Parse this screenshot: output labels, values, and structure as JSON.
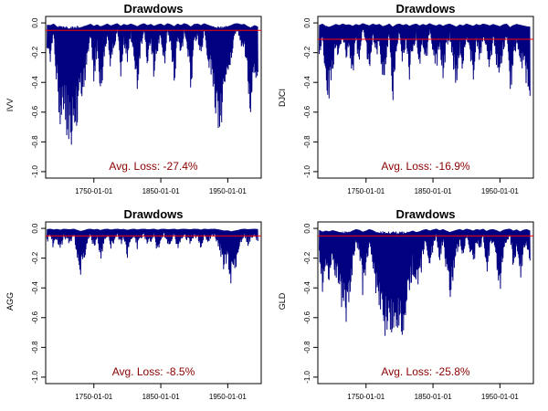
{
  "chart_data": [
    {
      "type": "area",
      "title": "Drawdows",
      "xlabel": "",
      "ylabel": "IVV",
      "ylim": [
        -1.0,
        0.0
      ],
      "xlim": [
        "1678-01-01",
        "2000-01-01"
      ],
      "x_ticks": [
        "1750-01-01",
        "1850-01-01",
        "1950-01-01"
      ],
      "y_ticks": [
        "0.0",
        "-0.2",
        "-0.4",
        "-0.6",
        "-0.8",
        "-1.0"
      ],
      "reference_line": -0.05,
      "annotation": "Avg. Loss: -27.4%",
      "grid": false,
      "legend": "none",
      "series_color": "#000080",
      "reference_color": "#ff0000",
      "annotation_color": "#8b0000",
      "series": [
        {
          "x": [
            "1680-01-01",
            "1685-01-01",
            "1690-01-01",
            "1695-01-01",
            "1700-01-01",
            "1705-01-01",
            "1710-01-01",
            "1715-01-01",
            "1720-01-01",
            "1725-01-01",
            "1730-01-01",
            "1735-01-01",
            "1740-01-01",
            "1745-01-01",
            "1750-01-01",
            "1755-01-01",
            "1760-01-01",
            "1765-01-01",
            "1770-01-01",
            "1775-01-01",
            "1780-01-01",
            "1785-01-01",
            "1790-01-01",
            "1795-01-01",
            "1800-01-01",
            "1805-01-01",
            "1810-01-01",
            "1815-01-01",
            "1820-01-01",
            "1825-01-01",
            "1830-01-01",
            "1835-01-01",
            "1840-01-01",
            "1845-01-01",
            "1850-01-01",
            "1855-01-01",
            "1860-01-01",
            "1865-01-01",
            "1870-01-01",
            "1875-01-01",
            "1880-01-01",
            "1885-01-01",
            "1890-01-01",
            "1895-01-01",
            "1900-01-01",
            "1905-01-01",
            "1910-01-01",
            "1915-01-01",
            "1920-01-01",
            "1925-01-01",
            "1930-01-01",
            "1935-01-01",
            "1940-01-01",
            "1945-01-01",
            "1950-01-01",
            "1955-01-01",
            "1960-01-01",
            "1965-01-01",
            "1970-01-01",
            "1975-01-01",
            "1980-01-01",
            "1985-01-01",
            "1990-01-01",
            "1995-01-01"
          ],
          "y": [
            -0.25,
            -0.3,
            -0.1,
            -0.5,
            -0.72,
            -0.62,
            -0.78,
            -0.86,
            -0.8,
            -0.7,
            -0.6,
            -0.45,
            -0.3,
            -0.12,
            -0.4,
            -0.2,
            -0.5,
            -0.3,
            -0.1,
            -0.35,
            -0.2,
            -0.05,
            -0.4,
            -0.15,
            -0.3,
            -0.1,
            -0.25,
            -0.45,
            -0.2,
            -0.05,
            -0.3,
            -0.15,
            -0.4,
            -0.2,
            -0.1,
            -0.35,
            -0.05,
            -0.2,
            -0.45,
            -0.1,
            -0.3,
            -0.05,
            -0.2,
            -0.5,
            -0.15,
            -0.1,
            -0.3,
            -0.05,
            -0.25,
            -0.4,
            -0.55,
            -0.7,
            -0.74,
            -0.6,
            -0.45,
            -0.3,
            -0.1,
            -0.05,
            -0.2,
            -0.15,
            -0.45,
            -0.65,
            -0.3,
            -0.5
          ]
        }
      ]
    },
    {
      "type": "area",
      "title": "Drawdows",
      "xlabel": "",
      "ylabel": "DJCI",
      "ylim": [
        -1.0,
        0.0
      ],
      "xlim": [
        "1678-01-01",
        "2000-01-01"
      ],
      "x_ticks": [
        "1750-01-01",
        "1850-01-01",
        "1950-01-01"
      ],
      "y_ticks": [
        "0.0",
        "-0.2",
        "-0.4",
        "-0.6",
        "-0.8",
        "-1.0"
      ],
      "reference_line": -0.11,
      "annotation": "Avg. Loss: -16.9%",
      "grid": false,
      "legend": "none",
      "series_color": "#000080",
      "reference_color": "#ff0000",
      "annotation_color": "#8b0000",
      "series": [
        {
          "x": [
            "1680-01-01",
            "1685-01-01",
            "1690-01-01",
            "1695-01-01",
            "1700-01-01",
            "1705-01-01",
            "1710-01-01",
            "1715-01-01",
            "1720-01-01",
            "1725-01-01",
            "1730-01-01",
            "1735-01-01",
            "1740-01-01",
            "1745-01-01",
            "1750-01-01",
            "1755-01-01",
            "1760-01-01",
            "1765-01-01",
            "1770-01-01",
            "1775-01-01",
            "1780-01-01",
            "1785-01-01",
            "1790-01-01",
            "1795-01-01",
            "1800-01-01",
            "1805-01-01",
            "1810-01-01",
            "1815-01-01",
            "1820-01-01",
            "1825-01-01",
            "1830-01-01",
            "1835-01-01",
            "1840-01-01",
            "1845-01-01",
            "1850-01-01",
            "1855-01-01",
            "1860-01-01",
            "1865-01-01",
            "1870-01-01",
            "1875-01-01",
            "1880-01-01",
            "1885-01-01",
            "1890-01-01",
            "1895-01-01",
            "1900-01-01",
            "1905-01-01",
            "1910-01-01",
            "1915-01-01",
            "1920-01-01",
            "1925-01-01",
            "1930-01-01",
            "1935-01-01",
            "1940-01-01",
            "1945-01-01",
            "1950-01-01",
            "1955-01-01",
            "1960-01-01",
            "1965-01-01",
            "1970-01-01",
            "1975-01-01",
            "1980-01-01",
            "1985-01-01",
            "1990-01-01",
            "1995-01-01"
          ],
          "y": [
            -0.3,
            -0.1,
            -0.45,
            -0.52,
            -0.35,
            -0.15,
            -0.3,
            -0.1,
            -0.25,
            -0.2,
            -0.4,
            -0.15,
            -0.3,
            -0.05,
            -0.2,
            -0.35,
            -0.1,
            -0.25,
            -0.15,
            -0.45,
            -0.3,
            -0.1,
            -0.55,
            -0.2,
            -0.1,
            -0.3,
            -0.15,
            -0.4,
            -0.2,
            -0.1,
            -0.35,
            -0.15,
            -0.3,
            -0.05,
            -0.25,
            -0.35,
            -0.15,
            -0.4,
            -0.2,
            -0.1,
            -0.3,
            -0.5,
            -0.2,
            -0.35,
            -0.1,
            -0.25,
            -0.4,
            -0.15,
            -0.3,
            -0.1,
            -0.2,
            -0.35,
            -0.15,
            -0.3,
            -0.45,
            -0.2,
            -0.1,
            -0.57,
            -0.3,
            -0.15,
            -0.25,
            -0.35,
            -0.45,
            -0.5
          ]
        }
      ]
    },
    {
      "type": "area",
      "title": "Drawdows",
      "xlabel": "",
      "ylabel": "AGG",
      "ylim": [
        -1.0,
        0.0
      ],
      "xlim": [
        "1678-01-01",
        "2000-01-01"
      ],
      "x_ticks": [
        "1750-01-01",
        "1850-01-01",
        "1950-01-01"
      ],
      "y_ticks": [
        "0.0",
        "-0.2",
        "-0.4",
        "-0.6",
        "-0.8",
        "-1.0"
      ],
      "reference_line": -0.05,
      "annotation": "Avg. Loss: -8.5%",
      "grid": false,
      "legend": "none",
      "series_color": "#000080",
      "reference_color": "#ff0000",
      "annotation_color": "#8b0000",
      "series": [
        {
          "x": [
            "1680-01-01",
            "1685-01-01",
            "1690-01-01",
            "1695-01-01",
            "1700-01-01",
            "1705-01-01",
            "1710-01-01",
            "1715-01-01",
            "1720-01-01",
            "1725-01-01",
            "1730-01-01",
            "1735-01-01",
            "1740-01-01",
            "1745-01-01",
            "1750-01-01",
            "1755-01-01",
            "1760-01-01",
            "1765-01-01",
            "1770-01-01",
            "1775-01-01",
            "1780-01-01",
            "1785-01-01",
            "1790-01-01",
            "1795-01-01",
            "1800-01-01",
            "1805-01-01",
            "1810-01-01",
            "1815-01-01",
            "1820-01-01",
            "1825-01-01",
            "1830-01-01",
            "1835-01-01",
            "1840-01-01",
            "1845-01-01",
            "1850-01-01",
            "1855-01-01",
            "1860-01-01",
            "1865-01-01",
            "1870-01-01",
            "1875-01-01",
            "1880-01-01",
            "1885-01-01",
            "1890-01-01",
            "1895-01-01",
            "1900-01-01",
            "1905-01-01",
            "1910-01-01",
            "1915-01-01",
            "1920-01-01",
            "1925-01-01",
            "1930-01-01",
            "1935-01-01",
            "1940-01-01",
            "1945-01-01",
            "1950-01-01",
            "1955-01-01",
            "1960-01-01",
            "1965-01-01",
            "1970-01-01",
            "1975-01-01",
            "1980-01-01",
            "1985-01-01",
            "1990-01-01",
            "1995-01-01"
          ],
          "y": [
            -0.1,
            -0.05,
            -0.15,
            -0.08,
            -0.18,
            -0.05,
            -0.1,
            -0.12,
            -0.05,
            -0.2,
            -0.35,
            -0.25,
            -0.1,
            -0.05,
            -0.15,
            -0.08,
            -0.22,
            -0.1,
            -0.05,
            -0.15,
            -0.1,
            -0.05,
            -0.12,
            -0.08,
            -0.2,
            -0.1,
            -0.05,
            -0.15,
            -0.08,
            -0.05,
            -0.12,
            -0.1,
            -0.05,
            -0.18,
            -0.08,
            -0.05,
            -0.12,
            -0.1,
            -0.05,
            -0.15,
            -0.08,
            -0.05,
            -0.1,
            -0.12,
            -0.05,
            -0.08,
            -0.15,
            -0.05,
            -0.1,
            -0.08,
            -0.05,
            -0.12,
            -0.2,
            -0.3,
            -0.25,
            -0.39,
            -0.3,
            -0.22,
            -0.1,
            -0.05,
            -0.12,
            -0.08,
            -0.05,
            -0.1
          ]
        }
      ]
    },
    {
      "type": "area",
      "title": "Drawdows",
      "xlabel": "",
      "ylabel": "GLD",
      "ylim": [
        -1.0,
        0.0
      ],
      "xlim": [
        "1678-01-01",
        "2000-01-01"
      ],
      "x_ticks": [
        "1750-01-01",
        "1850-01-01",
        "1950-01-01"
      ],
      "y_ticks": [
        "0.0",
        "-0.2",
        "-0.4",
        "-0.6",
        "-0.8",
        "-1.0"
      ],
      "reference_line": -0.05,
      "annotation": "Avg. Loss: -25.8%",
      "grid": false,
      "legend": "none",
      "series_color": "#000080",
      "reference_color": "#ff0000",
      "annotation_color": "#8b0000",
      "series": [
        {
          "x": [
            "1680-01-01",
            "1685-01-01",
            "1690-01-01",
            "1695-01-01",
            "1700-01-01",
            "1705-01-01",
            "1710-01-01",
            "1715-01-01",
            "1720-01-01",
            "1725-01-01",
            "1730-01-01",
            "1735-01-01",
            "1740-01-01",
            "1745-01-01",
            "1750-01-01",
            "1755-01-01",
            "1760-01-01",
            "1765-01-01",
            "1770-01-01",
            "1775-01-01",
            "1780-01-01",
            "1785-01-01",
            "1790-01-01",
            "1795-01-01",
            "1800-01-01",
            "1805-01-01",
            "1810-01-01",
            "1815-01-01",
            "1820-01-01",
            "1825-01-01",
            "1830-01-01",
            "1835-01-01",
            "1840-01-01",
            "1845-01-01",
            "1850-01-01",
            "1855-01-01",
            "1860-01-01",
            "1865-01-01",
            "1870-01-01",
            "1875-01-01",
            "1880-01-01",
            "1885-01-01",
            "1890-01-01",
            "1895-01-01",
            "1900-01-01",
            "1905-01-01",
            "1910-01-01",
            "1915-01-01",
            "1920-01-01",
            "1925-01-01",
            "1930-01-01",
            "1935-01-01",
            "1940-01-01",
            "1945-01-01",
            "1950-01-01",
            "1955-01-01",
            "1960-01-01",
            "1965-01-01",
            "1970-01-01",
            "1975-01-01",
            "1980-01-01",
            "1985-01-01",
            "1990-01-01",
            "1995-01-01"
          ],
          "y": [
            -0.2,
            -0.45,
            -0.3,
            -0.4,
            -0.25,
            -0.35,
            -0.5,
            -0.6,
            -0.67,
            -0.5,
            -0.3,
            -0.1,
            -0.2,
            -0.45,
            -0.3,
            -0.1,
            -0.25,
            -0.5,
            -0.6,
            -0.7,
            -0.75,
            -0.65,
            -0.8,
            -0.82,
            -0.7,
            -0.75,
            -0.6,
            -0.45,
            -0.3,
            -0.5,
            -0.4,
            -0.2,
            -0.1,
            -0.3,
            -0.15,
            -0.05,
            -0.25,
            -0.1,
            -0.3,
            -0.5,
            -0.35,
            -0.2,
            -0.1,
            -0.25,
            -0.05,
            -0.15,
            -0.3,
            -0.1,
            -0.2,
            -0.05,
            -0.35,
            -0.15,
            -0.1,
            -0.25,
            -0.45,
            -0.2,
            -0.1,
            -0.05,
            -0.3,
            -0.15,
            -0.4,
            -0.2,
            -0.1,
            -0.3
          ]
        }
      ]
    }
  ]
}
